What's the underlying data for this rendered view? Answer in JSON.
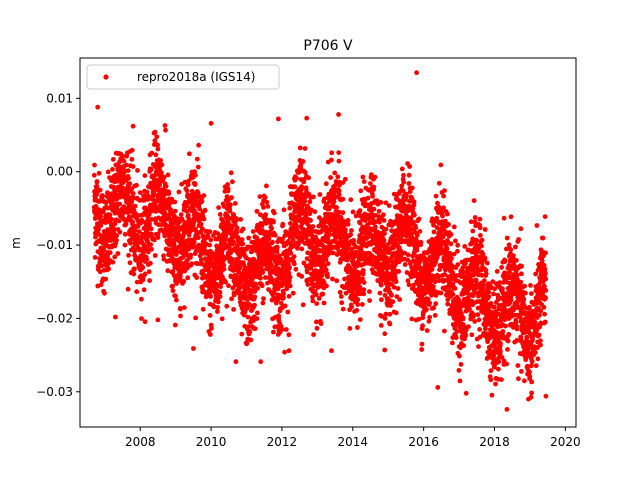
{
  "chart_data": {
    "type": "scatter",
    "title": "P706 V",
    "xlabel": "",
    "ylabel": "m",
    "xlim": [
      2006.3,
      2020.3
    ],
    "ylim": [
      -0.0348,
      0.0155
    ],
    "xticks": [
      2008,
      2010,
      2012,
      2014,
      2016,
      2018,
      2020
    ],
    "xtick_labels": [
      "2008",
      "2010",
      "2012",
      "2014",
      "2016",
      "2018",
      "2020"
    ],
    "yticks": [
      -0.03,
      -0.02,
      -0.01,
      0.0,
      0.01
    ],
    "ytick_labels": [
      "−0.03",
      "−0.02",
      "−0.01",
      "0.00",
      "0.01"
    ],
    "grid": false,
    "legend_position": "top-left",
    "series": [
      {
        "name": "repro2018a (IGS14)",
        "color": "#ff0000",
        "marker": "dot",
        "x_range": [
          2006.7,
          2019.45
        ],
        "trend_points": [
          {
            "x": 2006.7,
            "y": -0.005
          },
          {
            "x": 2007.5,
            "y": -0.006
          },
          {
            "x": 2008.5,
            "y": -0.006
          },
          {
            "x": 2010.0,
            "y": -0.011
          },
          {
            "x": 2011.5,
            "y": -0.014
          },
          {
            "x": 2012.5,
            "y": -0.008
          },
          {
            "x": 2013.5,
            "y": -0.01
          },
          {
            "x": 2014.5,
            "y": -0.011
          },
          {
            "x": 2015.5,
            "y": -0.01
          },
          {
            "x": 2016.5,
            "y": -0.013
          },
          {
            "x": 2017.5,
            "y": -0.017
          },
          {
            "x": 2018.5,
            "y": -0.02
          },
          {
            "x": 2019.45,
            "y": -0.018
          }
        ],
        "seasonal_amplitude": 0.004,
        "scatter_sigma": 0.0035,
        "highlight_points": [
          {
            "x": 2006.8,
            "y": 0.0088
          },
          {
            "x": 2015.8,
            "y": 0.0135
          },
          {
            "x": 2013.6,
            "y": 0.0078
          },
          {
            "x": 2012.7,
            "y": 0.0073
          },
          {
            "x": 2011.9,
            "y": 0.0072
          },
          {
            "x": 2010.0,
            "y": 0.0066
          },
          {
            "x": 2008.7,
            "y": 0.0063
          },
          {
            "x": 2007.8,
            "y": 0.0062
          },
          {
            "x": 2018.35,
            "y": -0.0324
          },
          {
            "x": 2019.45,
            "y": -0.0306
          },
          {
            "x": 2017.2,
            "y": -0.0302
          },
          {
            "x": 2016.4,
            "y": -0.0294
          },
          {
            "x": 2010.7,
            "y": -0.0259
          },
          {
            "x": 2011.4,
            "y": -0.0259
          },
          {
            "x": 2013.4,
            "y": -0.0244
          },
          {
            "x": 2012.2,
            "y": -0.0244
          },
          {
            "x": 2009.5,
            "y": -0.0241
          },
          {
            "x": 2014.9,
            "y": -0.0243
          },
          {
            "x": 2007.3,
            "y": -0.0198
          },
          {
            "x": 2008.5,
            "y": -0.0202
          }
        ]
      }
    ]
  }
}
